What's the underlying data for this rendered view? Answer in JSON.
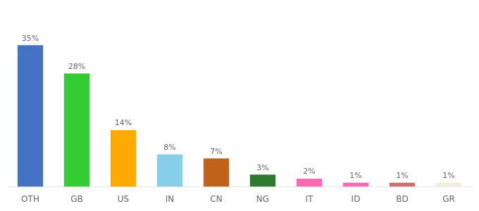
{
  "chart_data": {
    "type": "bar",
    "categories": [
      "OTH",
      "GB",
      "US",
      "IN",
      "CN",
      "NG",
      "IT",
      "ID",
      "BD",
      "GR"
    ],
    "values": [
      35,
      28,
      14,
      8,
      7,
      3,
      2,
      1,
      1,
      1
    ],
    "value_labels": [
      "35%",
      "28%",
      "14%",
      "8%",
      "7%",
      "3%",
      "2%",
      "1%",
      "1%",
      "1%"
    ],
    "colors": [
      "#4472c4",
      "#33cc33",
      "#ffaa00",
      "#87ceeb",
      "#c0621a",
      "#2d7a2d",
      "#ff69b4",
      "#ff69b4",
      "#cd7070",
      "#f0eedd"
    ],
    "ylim": [
      0,
      42
    ],
    "grid": false,
    "data_labels": true,
    "tick_labels": "x"
  }
}
